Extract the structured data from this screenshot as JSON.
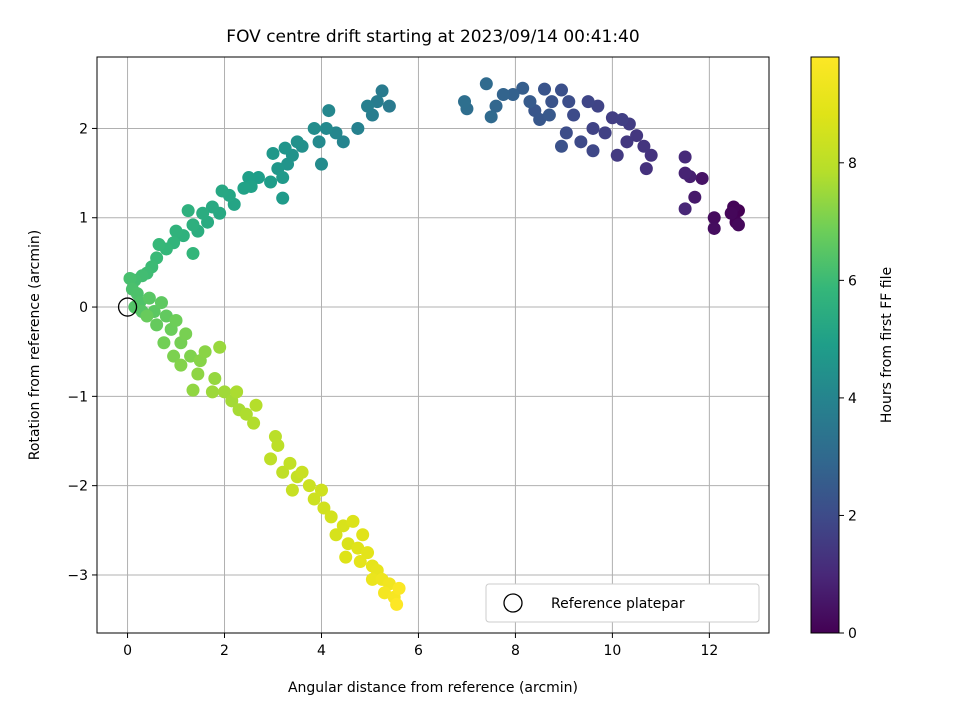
{
  "chart_data": {
    "type": "scatter",
    "title": "FOV centre drift starting at 2023/09/14 00:41:40",
    "xlabel": "Angular distance from reference (arcmin)",
    "ylabel": "Rotation from reference (arcmin)",
    "xlim": [
      -0.63,
      13.23
    ],
    "ylim": [
      -3.65,
      2.8
    ],
    "x_ticks": [
      0,
      2,
      4,
      6,
      8,
      10,
      12
    ],
    "y_ticks": [
      -3,
      -2,
      -1,
      0,
      1,
      2
    ],
    "grid": true,
    "legend": {
      "placement": "lower-right",
      "entries": [
        "Reference platepar"
      ]
    },
    "reference_point": {
      "x": 0,
      "y": 0
    },
    "colorbar": {
      "label": "Hours from first FF file",
      "range": [
        0,
        9.8
      ],
      "ticks": [
        0,
        2,
        4,
        6,
        8
      ],
      "colormap": "viridis"
    },
    "series": [
      {
        "points": [
          {
            "x": 12.6,
            "y": 1.08,
            "t": 0.0
          },
          {
            "x": 12.55,
            "y": 0.95,
            "t": 0.05
          },
          {
            "x": 12.5,
            "y": 1.12,
            "t": 0.1
          },
          {
            "x": 12.45,
            "y": 1.05,
            "t": 0.15
          },
          {
            "x": 12.6,
            "y": 0.92,
            "t": 0.2
          },
          {
            "x": 12.1,
            "y": 1.0,
            "t": 0.25
          },
          {
            "x": 12.1,
            "y": 0.88,
            "t": 0.3
          },
          {
            "x": 11.85,
            "y": 1.44,
            "t": 0.45
          },
          {
            "x": 11.7,
            "y": 1.23,
            "t": 0.6
          },
          {
            "x": 11.6,
            "y": 1.46,
            "t": 0.75
          },
          {
            "x": 11.5,
            "y": 1.5,
            "t": 0.85
          },
          {
            "x": 11.5,
            "y": 1.1,
            "t": 0.95
          },
          {
            "x": 11.5,
            "y": 1.68,
            "t": 1.05
          },
          {
            "x": 10.7,
            "y": 1.55,
            "t": 1.25
          },
          {
            "x": 10.8,
            "y": 1.7,
            "t": 1.3
          },
          {
            "x": 10.65,
            "y": 1.8,
            "t": 1.35
          },
          {
            "x": 10.5,
            "y": 1.92,
            "t": 1.4
          },
          {
            "x": 10.3,
            "y": 1.85,
            "t": 1.45
          },
          {
            "x": 10.1,
            "y": 1.7,
            "t": 1.5
          },
          {
            "x": 10.35,
            "y": 2.05,
            "t": 1.55
          },
          {
            "x": 10.0,
            "y": 2.12,
            "t": 1.6
          },
          {
            "x": 10.2,
            "y": 2.1,
            "t": 1.65
          },
          {
            "x": 9.85,
            "y": 1.95,
            "t": 1.7
          },
          {
            "x": 9.6,
            "y": 2.0,
            "t": 1.75
          },
          {
            "x": 9.7,
            "y": 2.25,
            "t": 1.8
          },
          {
            "x": 9.5,
            "y": 2.3,
            "t": 1.85
          },
          {
            "x": 9.6,
            "y": 1.75,
            "t": 1.9
          },
          {
            "x": 9.35,
            "y": 1.85,
            "t": 1.95
          },
          {
            "x": 9.2,
            "y": 2.15,
            "t": 2.0
          },
          {
            "x": 9.05,
            "y": 1.95,
            "t": 2.05
          },
          {
            "x": 9.1,
            "y": 2.3,
            "t": 2.1
          },
          {
            "x": 8.95,
            "y": 2.43,
            "t": 2.15
          },
          {
            "x": 8.95,
            "y": 1.8,
            "t": 2.2
          },
          {
            "x": 8.75,
            "y": 2.3,
            "t": 2.25
          },
          {
            "x": 8.6,
            "y": 2.44,
            "t": 2.3
          },
          {
            "x": 8.4,
            "y": 2.2,
            "t": 2.35
          },
          {
            "x": 8.5,
            "y": 2.1,
            "t": 2.4
          },
          {
            "x": 8.7,
            "y": 2.15,
            "t": 2.45
          },
          {
            "x": 8.3,
            "y": 2.3,
            "t": 2.5
          },
          {
            "x": 8.15,
            "y": 2.45,
            "t": 2.6
          },
          {
            "x": 7.95,
            "y": 2.38,
            "t": 2.7
          },
          {
            "x": 7.75,
            "y": 2.38,
            "t": 2.8
          },
          {
            "x": 7.6,
            "y": 2.25,
            "t": 2.9
          },
          {
            "x": 7.5,
            "y": 2.13,
            "t": 3.0
          },
          {
            "x": 7.4,
            "y": 2.5,
            "t": 3.05
          },
          {
            "x": 7.0,
            "y": 2.22,
            "t": 3.15
          },
          {
            "x": 6.95,
            "y": 2.3,
            "t": 3.2
          },
          {
            "x": 5.4,
            "y": 2.25,
            "t": 3.6
          },
          {
            "x": 5.25,
            "y": 2.42,
            "t": 3.65
          },
          {
            "x": 5.15,
            "y": 2.3,
            "t": 3.7
          },
          {
            "x": 5.05,
            "y": 2.15,
            "t": 3.75
          },
          {
            "x": 4.95,
            "y": 2.25,
            "t": 3.8
          },
          {
            "x": 4.75,
            "y": 2.0,
            "t": 3.9
          },
          {
            "x": 4.45,
            "y": 1.85,
            "t": 4.0
          },
          {
            "x": 4.3,
            "y": 1.95,
            "t": 4.05
          },
          {
            "x": 4.15,
            "y": 2.2,
            "t": 4.1
          },
          {
            "x": 4.1,
            "y": 2.0,
            "t": 4.15
          },
          {
            "x": 3.95,
            "y": 1.85,
            "t": 4.2
          },
          {
            "x": 4.0,
            "y": 1.6,
            "t": 4.25
          },
          {
            "x": 3.85,
            "y": 2.0,
            "t": 4.3
          },
          {
            "x": 3.6,
            "y": 1.8,
            "t": 4.4
          },
          {
            "x": 3.5,
            "y": 1.85,
            "t": 4.45
          },
          {
            "x": 3.4,
            "y": 1.7,
            "t": 4.5
          },
          {
            "x": 3.3,
            "y": 1.6,
            "t": 4.55
          },
          {
            "x": 3.25,
            "y": 1.78,
            "t": 4.6
          },
          {
            "x": 3.1,
            "y": 1.55,
            "t": 4.65
          },
          {
            "x": 3.0,
            "y": 1.72,
            "t": 4.7
          },
          {
            "x": 3.2,
            "y": 1.45,
            "t": 4.75
          },
          {
            "x": 3.2,
            "y": 1.22,
            "t": 4.8
          },
          {
            "x": 2.95,
            "y": 1.4,
            "t": 4.85
          },
          {
            "x": 2.7,
            "y": 1.45,
            "t": 4.9
          },
          {
            "x": 2.5,
            "y": 1.45,
            "t": 4.95
          },
          {
            "x": 2.55,
            "y": 1.35,
            "t": 5.0
          },
          {
            "x": 2.4,
            "y": 1.33,
            "t": 5.05
          },
          {
            "x": 2.2,
            "y": 1.15,
            "t": 5.15
          },
          {
            "x": 2.1,
            "y": 1.25,
            "t": 5.2
          },
          {
            "x": 1.95,
            "y": 1.3,
            "t": 5.25
          },
          {
            "x": 1.9,
            "y": 1.05,
            "t": 5.3
          },
          {
            "x": 1.75,
            "y": 1.12,
            "t": 5.35
          },
          {
            "x": 1.65,
            "y": 0.95,
            "t": 5.4
          },
          {
            "x": 1.55,
            "y": 1.05,
            "t": 5.45
          },
          {
            "x": 1.45,
            "y": 0.85,
            "t": 5.5
          },
          {
            "x": 1.35,
            "y": 0.92,
            "t": 5.55
          },
          {
            "x": 1.25,
            "y": 1.08,
            "t": 5.6
          },
          {
            "x": 1.15,
            "y": 0.8,
            "t": 5.65
          },
          {
            "x": 1.0,
            "y": 0.85,
            "t": 5.7
          },
          {
            "x": 0.95,
            "y": 0.72,
            "t": 5.75
          },
          {
            "x": 1.35,
            "y": 0.6,
            "t": 5.8
          },
          {
            "x": 0.8,
            "y": 0.65,
            "t": 5.85
          },
          {
            "x": 0.65,
            "y": 0.7,
            "t": 5.9
          },
          {
            "x": 0.6,
            "y": 0.55,
            "t": 5.95
          },
          {
            "x": 0.5,
            "y": 0.45,
            "t": 6.0
          },
          {
            "x": 0.4,
            "y": 0.38,
            "t": 6.05
          },
          {
            "x": 0.3,
            "y": 0.35,
            "t": 6.1
          },
          {
            "x": 0.15,
            "y": 0.3,
            "t": 6.15
          },
          {
            "x": 0.05,
            "y": 0.32,
            "t": 6.2
          },
          {
            "x": 0.1,
            "y": 0.2,
            "t": 6.25
          },
          {
            "x": 0.2,
            "y": 0.15,
            "t": 6.3
          },
          {
            "x": 0.25,
            "y": 0.05,
            "t": 6.35
          },
          {
            "x": 0.15,
            "y": 0.0,
            "t": 6.4
          },
          {
            "x": 0.3,
            "y": -0.05,
            "t": 6.45
          },
          {
            "x": 0.45,
            "y": 0.1,
            "t": 6.5
          },
          {
            "x": 0.55,
            "y": -0.05,
            "t": 6.55
          },
          {
            "x": 0.7,
            "y": 0.05,
            "t": 6.6
          },
          {
            "x": 0.8,
            "y": -0.1,
            "t": 6.65
          },
          {
            "x": 0.6,
            "y": -0.2,
            "t": 6.7
          },
          {
            "x": 0.4,
            "y": -0.1,
            "t": 6.75
          },
          {
            "x": 0.9,
            "y": -0.25,
            "t": 6.8
          },
          {
            "x": 1.0,
            "y": -0.15,
            "t": 6.85
          },
          {
            "x": 0.75,
            "y": -0.4,
            "t": 6.9
          },
          {
            "x": 1.1,
            "y": -0.4,
            "t": 6.95
          },
          {
            "x": 1.2,
            "y": -0.3,
            "t": 7.0
          },
          {
            "x": 0.95,
            "y": -0.55,
            "t": 7.05
          },
          {
            "x": 1.3,
            "y": -0.55,
            "t": 7.1
          },
          {
            "x": 1.1,
            "y": -0.65,
            "t": 7.15
          },
          {
            "x": 1.5,
            "y": -0.6,
            "t": 7.2
          },
          {
            "x": 1.6,
            "y": -0.5,
            "t": 7.25
          },
          {
            "x": 1.45,
            "y": -0.75,
            "t": 7.3
          },
          {
            "x": 1.35,
            "y": -0.93,
            "t": 7.35
          },
          {
            "x": 1.8,
            "y": -0.8,
            "t": 7.4
          },
          {
            "x": 1.9,
            "y": -0.45,
            "t": 7.45
          },
          {
            "x": 1.75,
            "y": -0.95,
            "t": 7.5
          },
          {
            "x": 2.0,
            "y": -0.95,
            "t": 7.55
          },
          {
            "x": 2.15,
            "y": -1.05,
            "t": 7.6
          },
          {
            "x": 2.3,
            "y": -1.15,
            "t": 7.65
          },
          {
            "x": 2.25,
            "y": -0.95,
            "t": 7.7
          },
          {
            "x": 2.45,
            "y": -1.2,
            "t": 7.75
          },
          {
            "x": 2.6,
            "y": -1.3,
            "t": 7.8
          },
          {
            "x": 2.65,
            "y": -1.1,
            "t": 7.85
          },
          {
            "x": 3.05,
            "y": -1.45,
            "t": 7.95
          },
          {
            "x": 3.1,
            "y": -1.55,
            "t": 8.0
          },
          {
            "x": 2.95,
            "y": -1.7,
            "t": 8.05
          },
          {
            "x": 3.2,
            "y": -1.85,
            "t": 8.1
          },
          {
            "x": 3.35,
            "y": -1.75,
            "t": 8.15
          },
          {
            "x": 3.5,
            "y": -1.9,
            "t": 8.2
          },
          {
            "x": 3.4,
            "y": -2.05,
            "t": 8.25
          },
          {
            "x": 3.6,
            "y": -1.85,
            "t": 8.3
          },
          {
            "x": 3.75,
            "y": -2.0,
            "t": 8.35
          },
          {
            "x": 3.85,
            "y": -2.15,
            "t": 8.4
          },
          {
            "x": 4.0,
            "y": -2.05,
            "t": 8.45
          },
          {
            "x": 4.05,
            "y": -2.25,
            "t": 8.5
          },
          {
            "x": 4.2,
            "y": -2.35,
            "t": 8.55
          },
          {
            "x": 4.3,
            "y": -2.55,
            "t": 8.6
          },
          {
            "x": 4.45,
            "y": -2.45,
            "t": 8.65
          },
          {
            "x": 4.55,
            "y": -2.65,
            "t": 8.7
          },
          {
            "x": 4.65,
            "y": -2.4,
            "t": 8.75
          },
          {
            "x": 4.5,
            "y": -2.8,
            "t": 8.8
          },
          {
            "x": 4.75,
            "y": -2.7,
            "t": 8.85
          },
          {
            "x": 4.85,
            "y": -2.55,
            "t": 8.9
          },
          {
            "x": 4.95,
            "y": -2.75,
            "t": 8.95
          },
          {
            "x": 4.8,
            "y": -2.85,
            "t": 9.0
          },
          {
            "x": 5.05,
            "y": -2.9,
            "t": 9.05
          },
          {
            "x": 5.15,
            "y": -2.95,
            "t": 9.1
          },
          {
            "x": 5.05,
            "y": -3.05,
            "t": 9.2
          },
          {
            "x": 5.25,
            "y": -3.05,
            "t": 9.3
          },
          {
            "x": 5.4,
            "y": -3.1,
            "t": 9.4
          },
          {
            "x": 5.3,
            "y": -3.2,
            "t": 9.5
          },
          {
            "x": 5.5,
            "y": -3.25,
            "t": 9.6
          },
          {
            "x": 5.6,
            "y": -3.15,
            "t": 9.7
          },
          {
            "x": 5.55,
            "y": -3.33,
            "t": 9.8
          }
        ]
      }
    ]
  }
}
